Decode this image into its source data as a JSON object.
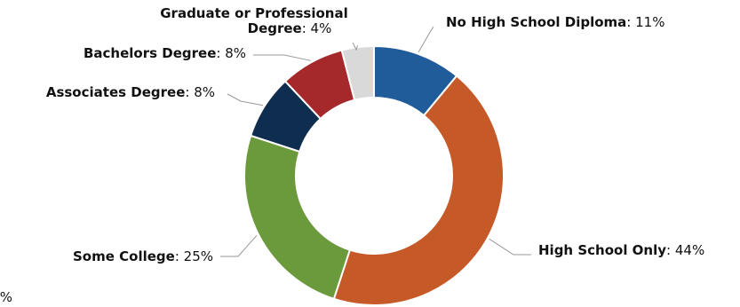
{
  "chart_data": {
    "type": "pie",
    "subtype": "donut",
    "legend": "none",
    "categories": [
      "No High School Diploma",
      "High School Only",
      "Some College",
      "Associates Degree",
      "Bachelors Degree",
      "Graduate or Professional Degree"
    ],
    "values": [
      11,
      44,
      25,
      8,
      8,
      4
    ],
    "value_labels": [
      "11%",
      "44%",
      "25%",
      "8%",
      "8%",
      "4%"
    ],
    "label_lines": [
      [
        "No High School Diploma"
      ],
      [
        "High School Only"
      ],
      [
        "Some College"
      ],
      [
        "Associates Degree"
      ],
      [
        "Bachelors Degree"
      ],
      [
        "Graduate or Professional",
        "Degree"
      ]
    ],
    "colors": [
      "#1f5c99",
      "#c55a28",
      "#6b9a3c",
      "#0f2d4e",
      "#a5282b",
      "#d9d9d9"
    ],
    "leader_color": "#999999"
  },
  "stray_text": "%"
}
